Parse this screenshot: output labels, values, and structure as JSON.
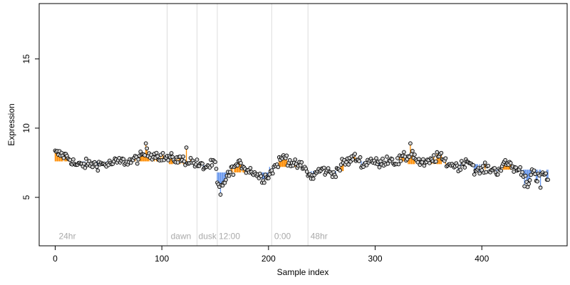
{
  "chart_data": {
    "type": "scatter",
    "xlabel": "Sample index",
    "ylabel": "Expression",
    "xlim": [
      -15,
      480
    ],
    "ylim": [
      1.5,
      19.0
    ],
    "xticks": [
      0,
      100,
      200,
      300,
      400
    ],
    "yticks": [
      5,
      10,
      15
    ],
    "grid": false,
    "colors": {
      "point_fill": "#d3d3d3",
      "point_stroke": "#000000",
      "segment_up": "#ff8c00",
      "segment_down": "#6495ed",
      "vline": "#dcdcdc",
      "annotation": "#a9a9a9"
    },
    "vlines": [
      105,
      133,
      152,
      203,
      237
    ],
    "annotations": [
      {
        "x": 2,
        "label": "24hr"
      },
      {
        "x": 107,
        "label": "dawn"
      },
      {
        "x": 133,
        "label": "dusk"
      },
      {
        "x": 152,
        "label": "12:00"
      },
      {
        "x": 204,
        "label": "0:00"
      },
      {
        "x": 238,
        "label": "48hr"
      }
    ],
    "annotation_y": 2.0,
    "segments": [
      {
        "start": 0,
        "end": 105,
        "base": 7.6
      },
      {
        "start": 106,
        "end": 150,
        "base": 7.4
      },
      {
        "start": 151,
        "end": 200,
        "base": 6.8
      },
      {
        "start": 201,
        "end": 236,
        "base": 7.2
      },
      {
        "start": 237,
        "end": 270,
        "base": 6.9
      },
      {
        "start": 271,
        "end": 330,
        "base": 7.6
      },
      {
        "start": 331,
        "end": 400,
        "base": 7.4
      },
      {
        "start": 401,
        "end": 462,
        "base": 7.0
      }
    ],
    "control_x": [
      0,
      5,
      10,
      15,
      20,
      30,
      40,
      50,
      60,
      70,
      80,
      85,
      90,
      95,
      100,
      110,
      120,
      128,
      135,
      140,
      145,
      150,
      152,
      155,
      158,
      162,
      166,
      170,
      175,
      180,
      185,
      190,
      195,
      200,
      205,
      210,
      215,
      220,
      225,
      230,
      235,
      240,
      245,
      250,
      255,
      260,
      265,
      270,
      275,
      280,
      285,
      290,
      295,
      300,
      305,
      310,
      315,
      320,
      325,
      330,
      335,
      340,
      345,
      350,
      355,
      360,
      365,
      370,
      375,
      380,
      385,
      390,
      395,
      400,
      405,
      410,
      415,
      420,
      425,
      430,
      435,
      440,
      443,
      447,
      452,
      455,
      458,
      462
    ],
    "control_y": [
      8.2,
      8.1,
      8.0,
      7.7,
      7.3,
      7.4,
      7.4,
      7.4,
      7.6,
      7.6,
      7.9,
      8.2,
      8.1,
      8.1,
      7.9,
      7.8,
      7.7,
      7.6,
      7.3,
      7.2,
      7.3,
      7.5,
      6.0,
      5.5,
      6.1,
      6.6,
      7.0,
      7.3,
      7.4,
      7.0,
      6.9,
      6.6,
      6.4,
      6.6,
      7.1,
      7.6,
      8.0,
      7.6,
      7.3,
      7.3,
      7.0,
      6.4,
      6.8,
      7.0,
      6.9,
      6.7,
      7.0,
      7.5,
      7.6,
      7.9,
      7.7,
      7.3,
      7.8,
      7.5,
      7.4,
      7.7,
      7.8,
      7.5,
      7.8,
      7.9,
      8.2,
      7.6,
      7.4,
      7.5,
      7.8,
      8.0,
      7.6,
      7.4,
      7.3,
      7.2,
      7.7,
      7.5,
      6.8,
      7.0,
      7.1,
      7.0,
      6.9,
      7.3,
      7.5,
      7.1,
      7.0,
      6.7,
      6.0,
      6.9,
      6.2,
      6.6,
      6.8,
      6.2
    ],
    "noise": 0.42,
    "n_points": 463,
    "outliers": [
      {
        "x": 85,
        "y": 8.9
      },
      {
        "x": 123,
        "y": 8.6
      },
      {
        "x": 155,
        "y": 5.2
      },
      {
        "x": 333,
        "y": 8.9
      },
      {
        "x": 440,
        "y": 5.8
      },
      {
        "x": 455,
        "y": 5.7
      }
    ]
  }
}
